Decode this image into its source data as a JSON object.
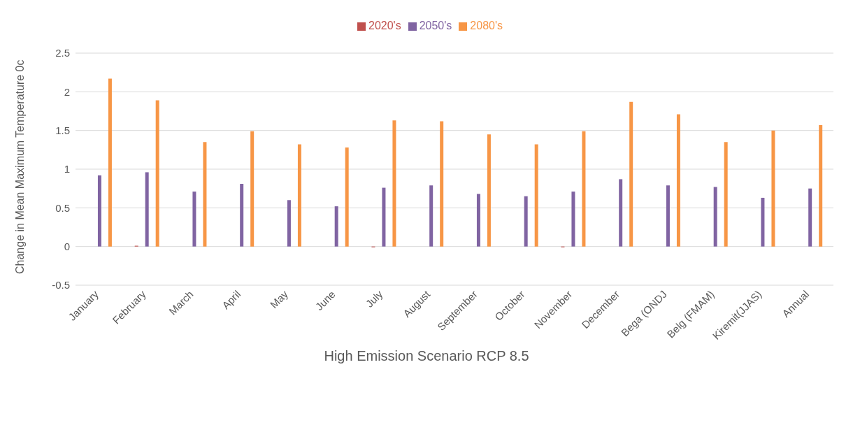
{
  "chart_data": {
    "type": "bar",
    "xlabel": "High Emission Scenario RCP 8.5",
    "ylabel": "Change in Mean Maximum Temperature 0c",
    "categories": [
      "January",
      "February",
      "March",
      "April",
      "May",
      "June",
      "July",
      "August",
      "September",
      "October",
      "November",
      "December",
      "Bega (ONDJ",
      "Belg (FMAM)",
      "Kiremit(JJAS)",
      "Annual"
    ],
    "series": [
      {
        "name": "2020's",
        "color": "#c0504d",
        "values": [
          0,
          0.01,
          0,
          0,
          0,
          0,
          -0.01,
          0,
          0,
          0,
          -0.01,
          0,
          0,
          0,
          0,
          0
        ]
      },
      {
        "name": "2050's",
        "color": "#8064a2",
        "values": [
          0.92,
          0.96,
          0.71,
          0.81,
          0.6,
          0.52,
          0.76,
          0.79,
          0.68,
          0.65,
          0.71,
          0.87,
          0.79,
          0.77,
          0.63,
          0.75
        ]
      },
      {
        "name": "2080's",
        "color": "#f79646",
        "values": [
          2.17,
          1.89,
          1.35,
          1.49,
          1.32,
          1.28,
          1.63,
          1.62,
          1.45,
          1.32,
          1.49,
          1.87,
          1.71,
          1.35,
          1.5,
          1.57
        ]
      }
    ],
    "ylim": [
      -0.5,
      2.5
    ],
    "yticks": [
      -0.5,
      0,
      0.5,
      1,
      1.5,
      2,
      2.5
    ],
    "grid": "y",
    "legend": "top"
  }
}
